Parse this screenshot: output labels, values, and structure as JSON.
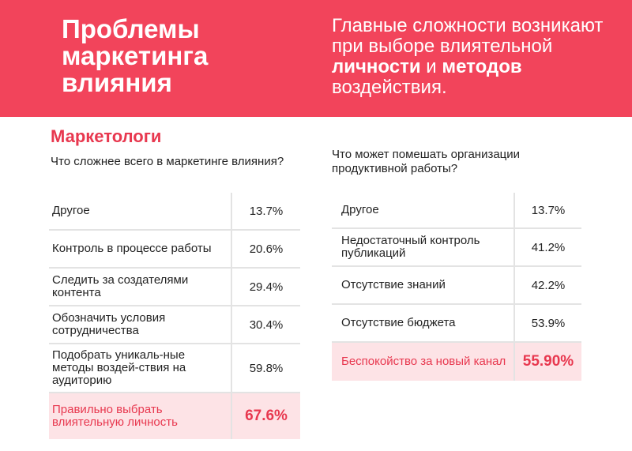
{
  "banner": {
    "title": "Проблемы маркетинга влияния",
    "subtitle_parts": {
      "p1": "Главные сложности возникают при выборе влиятельной ",
      "b1": "личности",
      "p2": " и ",
      "b2": "методов",
      "p3": " воздействия."
    }
  },
  "section_title": "Маркетологи",
  "left": {
    "question": "Что сложнее всего в маркетинге влияния?",
    "rows": [
      {
        "label": "Другое",
        "value": "13.7%"
      },
      {
        "label": "Контроль в процессе работы",
        "value": "20.6%"
      },
      {
        "label": "Следить за создателями контента",
        "value": "29.4%"
      },
      {
        "label": "Обозначить условия сотрудничества",
        "value": "30.4%"
      },
      {
        "label": "Подобрать уникаль-ные методы воздей-ствия на аудиторию",
        "value": "59.8%"
      },
      {
        "label": "Правильно выбрать влиятельную личность",
        "value": "67.6%"
      }
    ]
  },
  "right": {
    "question": "Что может помешать организации продуктивной работы?",
    "rows": [
      {
        "label": "Другое",
        "value": "13.7%"
      },
      {
        "label": "Недостаточный контроль публикаций",
        "value": "41.2%"
      },
      {
        "label": "Отсутствие знаний",
        "value": "42.2%"
      },
      {
        "label": "Отсутствие бюджета",
        "value": "53.9%"
      },
      {
        "label": "Беспокойство за новый канал",
        "value": "55.90%"
      }
    ]
  }
}
